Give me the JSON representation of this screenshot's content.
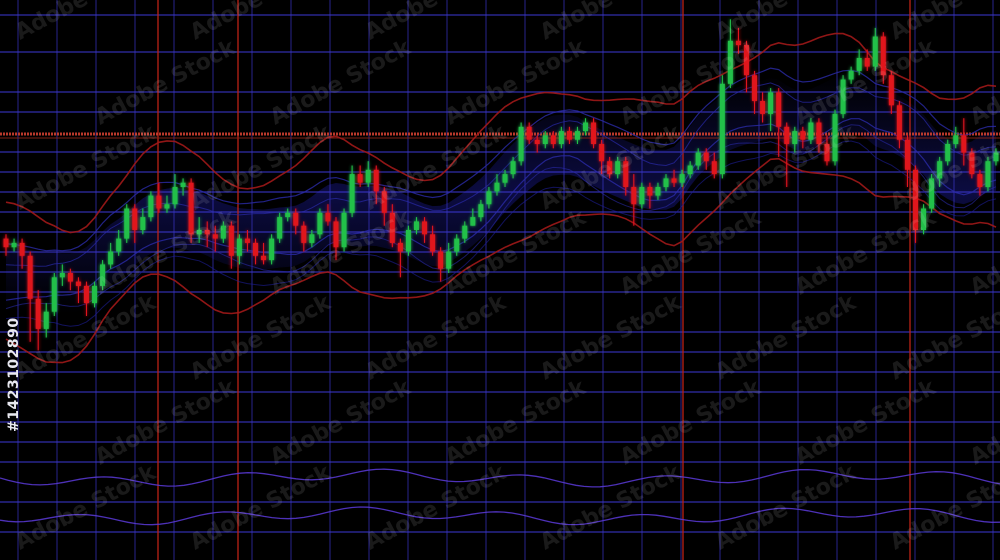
{
  "watermark": {
    "text": "Adobe Stock",
    "id": "#1423102890"
  },
  "colors": {
    "background": "#000000",
    "grid": "#3a36c8",
    "grid_bright": "#5a55e8",
    "bull": "#22c04a",
    "bear": "#e0141e",
    "accent_line": "#c02418",
    "band_blue": "#2a2aa8",
    "band_red": "#a01818"
  },
  "chart_data": {
    "type": "candlestick",
    "title": "",
    "xlabel": "",
    "ylabel": "",
    "ylim": [
      0,
      100
    ],
    "grid": true,
    "legend": "none",
    "candles": [
      {
        "o": 48,
        "c": 46,
        "h": 49,
        "l": 44
      },
      {
        "o": 46,
        "c": 47,
        "h": 48,
        "l": 45
      },
      {
        "o": 47,
        "c": 44,
        "h": 48,
        "l": 41
      },
      {
        "o": 44,
        "c": 34,
        "h": 45,
        "l": 24
      },
      {
        "o": 34,
        "c": 27,
        "h": 36,
        "l": 22
      },
      {
        "o": 27,
        "c": 31,
        "h": 33,
        "l": 25
      },
      {
        "o": 31,
        "c": 39,
        "h": 40,
        "l": 30
      },
      {
        "o": 39,
        "c": 40,
        "h": 42,
        "l": 37
      },
      {
        "o": 40,
        "c": 38,
        "h": 41,
        "l": 36
      },
      {
        "o": 38,
        "c": 37,
        "h": 39,
        "l": 33
      },
      {
        "o": 37,
        "c": 33,
        "h": 38,
        "l": 30
      },
      {
        "o": 33,
        "c": 37,
        "h": 38,
        "l": 32
      },
      {
        "o": 37,
        "c": 42,
        "h": 43,
        "l": 36
      },
      {
        "o": 42,
        "c": 45,
        "h": 47,
        "l": 41
      },
      {
        "o": 45,
        "c": 48,
        "h": 50,
        "l": 44
      },
      {
        "o": 48,
        "c": 55,
        "h": 56,
        "l": 47
      },
      {
        "o": 55,
        "c": 50,
        "h": 56,
        "l": 47
      },
      {
        "o": 50,
        "c": 53,
        "h": 55,
        "l": 49
      },
      {
        "o": 53,
        "c": 58,
        "h": 59,
        "l": 52
      },
      {
        "o": 58,
        "c": 55,
        "h": 61,
        "l": 54
      },
      {
        "o": 55,
        "c": 56,
        "h": 58,
        "l": 54
      },
      {
        "o": 56,
        "c": 60,
        "h": 63,
        "l": 55
      },
      {
        "o": 60,
        "c": 61,
        "h": 62,
        "l": 58
      },
      {
        "o": 61,
        "c": 49,
        "h": 62,
        "l": 47
      },
      {
        "o": 49,
        "c": 50,
        "h": 53,
        "l": 47
      },
      {
        "o": 50,
        "c": 49,
        "h": 52,
        "l": 46
      },
      {
        "o": 49,
        "c": 48,
        "h": 51,
        "l": 45
      },
      {
        "o": 48,
        "c": 51,
        "h": 52,
        "l": 47
      },
      {
        "o": 51,
        "c": 44,
        "h": 52,
        "l": 41
      },
      {
        "o": 44,
        "c": 48,
        "h": 49,
        "l": 42
      },
      {
        "o": 48,
        "c": 47,
        "h": 50,
        "l": 45
      },
      {
        "o": 47,
        "c": 44,
        "h": 48,
        "l": 42
      },
      {
        "o": 44,
        "c": 43,
        "h": 47,
        "l": 42
      },
      {
        "o": 43,
        "c": 48,
        "h": 49,
        "l": 42
      },
      {
        "o": 48,
        "c": 53,
        "h": 54,
        "l": 47
      },
      {
        "o": 53,
        "c": 54,
        "h": 55,
        "l": 52
      },
      {
        "o": 54,
        "c": 51,
        "h": 55,
        "l": 49
      },
      {
        "o": 51,
        "c": 47,
        "h": 52,
        "l": 45
      },
      {
        "o": 47,
        "c": 49,
        "h": 50,
        "l": 46
      },
      {
        "o": 49,
        "c": 54,
        "h": 55,
        "l": 48
      },
      {
        "o": 54,
        "c": 52,
        "h": 56,
        "l": 51
      },
      {
        "o": 52,
        "c": 46,
        "h": 53,
        "l": 43
      },
      {
        "o": 46,
        "c": 54,
        "h": 55,
        "l": 45
      },
      {
        "o": 54,
        "c": 63,
        "h": 65,
        "l": 53
      },
      {
        "o": 63,
        "c": 61,
        "h": 65,
        "l": 60
      },
      {
        "o": 61,
        "c": 64,
        "h": 66,
        "l": 60
      },
      {
        "o": 64,
        "c": 59,
        "h": 65,
        "l": 56
      },
      {
        "o": 59,
        "c": 54,
        "h": 60,
        "l": 51
      },
      {
        "o": 54,
        "c": 47,
        "h": 56,
        "l": 46
      },
      {
        "o": 47,
        "c": 45,
        "h": 48,
        "l": 39
      },
      {
        "o": 45,
        "c": 50,
        "h": 51,
        "l": 44
      },
      {
        "o": 50,
        "c": 52,
        "h": 53,
        "l": 49
      },
      {
        "o": 52,
        "c": 49,
        "h": 53,
        "l": 47
      },
      {
        "o": 49,
        "c": 45,
        "h": 51,
        "l": 44
      },
      {
        "o": 45,
        "c": 41,
        "h": 46,
        "l": 38
      },
      {
        "o": 41,
        "c": 45,
        "h": 47,
        "l": 40
      },
      {
        "o": 45,
        "c": 48,
        "h": 49,
        "l": 44
      },
      {
        "o": 48,
        "c": 51,
        "h": 52,
        "l": 47
      },
      {
        "o": 51,
        "c": 53,
        "h": 55,
        "l": 51
      },
      {
        "o": 53,
        "c": 56,
        "h": 57,
        "l": 52
      },
      {
        "o": 56,
        "c": 59,
        "h": 60,
        "l": 55
      },
      {
        "o": 59,
        "c": 61,
        "h": 63,
        "l": 58
      },
      {
        "o": 61,
        "c": 63,
        "h": 64,
        "l": 60
      },
      {
        "o": 63,
        "c": 66,
        "h": 67,
        "l": 62
      },
      {
        "o": 66,
        "c": 74,
        "h": 75,
        "l": 65
      },
      {
        "o": 74,
        "c": 71,
        "h": 75,
        "l": 70
      },
      {
        "o": 71,
        "c": 70,
        "h": 72,
        "l": 68
      },
      {
        "o": 70,
        "c": 72,
        "h": 73,
        "l": 69
      },
      {
        "o": 72,
        "c": 70,
        "h": 73,
        "l": 69
      },
      {
        "o": 70,
        "c": 73,
        "h": 74,
        "l": 69
      },
      {
        "o": 73,
        "c": 71,
        "h": 74,
        "l": 70
      },
      {
        "o": 71,
        "c": 73,
        "h": 74,
        "l": 70
      },
      {
        "o": 73,
        "c": 75,
        "h": 76,
        "l": 72
      },
      {
        "o": 75,
        "c": 70,
        "h": 76,
        "l": 69
      },
      {
        "o": 70,
        "c": 66,
        "h": 71,
        "l": 63
      },
      {
        "o": 66,
        "c": 63,
        "h": 67,
        "l": 62
      },
      {
        "o": 63,
        "c": 66,
        "h": 67,
        "l": 62
      },
      {
        "o": 66,
        "c": 60,
        "h": 67,
        "l": 58
      },
      {
        "o": 60,
        "c": 56,
        "h": 63,
        "l": 51
      },
      {
        "o": 56,
        "c": 60,
        "h": 61,
        "l": 55
      },
      {
        "o": 60,
        "c": 58,
        "h": 61,
        "l": 55
      },
      {
        "o": 58,
        "c": 60,
        "h": 61,
        "l": 57
      },
      {
        "o": 60,
        "c": 62,
        "h": 63,
        "l": 59
      },
      {
        "o": 62,
        "c": 61,
        "h": 64,
        "l": 60
      },
      {
        "o": 61,
        "c": 63,
        "h": 64,
        "l": 60
      },
      {
        "o": 63,
        "c": 65,
        "h": 66,
        "l": 62
      },
      {
        "o": 65,
        "c": 68,
        "h": 69,
        "l": 64
      },
      {
        "o": 68,
        "c": 66,
        "h": 69,
        "l": 64
      },
      {
        "o": 66,
        "c": 63,
        "h": 68,
        "l": 62
      },
      {
        "o": 63,
        "c": 84,
        "h": 86,
        "l": 62
      },
      {
        "o": 84,
        "c": 94,
        "h": 99,
        "l": 83
      },
      {
        "o": 94,
        "c": 93,
        "h": 97,
        "l": 91
      },
      {
        "o": 93,
        "c": 86,
        "h": 94,
        "l": 82
      },
      {
        "o": 86,
        "c": 80,
        "h": 87,
        "l": 77
      },
      {
        "o": 80,
        "c": 77,
        "h": 82,
        "l": 75
      },
      {
        "o": 77,
        "c": 82,
        "h": 83,
        "l": 73
      },
      {
        "o": 82,
        "c": 74,
        "h": 83,
        "l": 67
      },
      {
        "o": 74,
        "c": 70,
        "h": 75,
        "l": 60
      },
      {
        "o": 70,
        "c": 73,
        "h": 74,
        "l": 68
      },
      {
        "o": 73,
        "c": 71,
        "h": 74,
        "l": 69
      },
      {
        "o": 71,
        "c": 75,
        "h": 76,
        "l": 70
      },
      {
        "o": 75,
        "c": 70,
        "h": 76,
        "l": 68
      },
      {
        "o": 70,
        "c": 66,
        "h": 72,
        "l": 65
      },
      {
        "o": 66,
        "c": 77,
        "h": 78,
        "l": 65
      },
      {
        "o": 77,
        "c": 85,
        "h": 86,
        "l": 76
      },
      {
        "o": 85,
        "c": 87,
        "h": 88,
        "l": 84
      },
      {
        "o": 87,
        "c": 90,
        "h": 92,
        "l": 86
      },
      {
        "o": 90,
        "c": 88,
        "h": 92,
        "l": 87
      },
      {
        "o": 88,
        "c": 95,
        "h": 97,
        "l": 87
      },
      {
        "o": 95,
        "c": 86,
        "h": 96,
        "l": 84
      },
      {
        "o": 86,
        "c": 79,
        "h": 87,
        "l": 77
      },
      {
        "o": 79,
        "c": 71,
        "h": 80,
        "l": 69
      },
      {
        "o": 71,
        "c": 64,
        "h": 72,
        "l": 60
      },
      {
        "o": 64,
        "c": 50,
        "h": 65,
        "l": 47
      },
      {
        "o": 50,
        "c": 55,
        "h": 56,
        "l": 49
      },
      {
        "o": 55,
        "c": 62,
        "h": 63,
        "l": 54
      },
      {
        "o": 62,
        "c": 66,
        "h": 67,
        "l": 60
      },
      {
        "o": 66,
        "c": 70,
        "h": 71,
        "l": 65
      },
      {
        "o": 70,
        "c": 72,
        "h": 74,
        "l": 69
      },
      {
        "o": 72,
        "c": 68,
        "h": 76,
        "l": 65
      },
      {
        "o": 68,
        "c": 63,
        "h": 69,
        "l": 62
      },
      {
        "o": 63,
        "c": 60,
        "h": 64,
        "l": 58
      },
      {
        "o": 60,
        "c": 66,
        "h": 67,
        "l": 59
      },
      {
        "o": 66,
        "c": 68,
        "h": 69,
        "l": 65
      }
    ]
  }
}
